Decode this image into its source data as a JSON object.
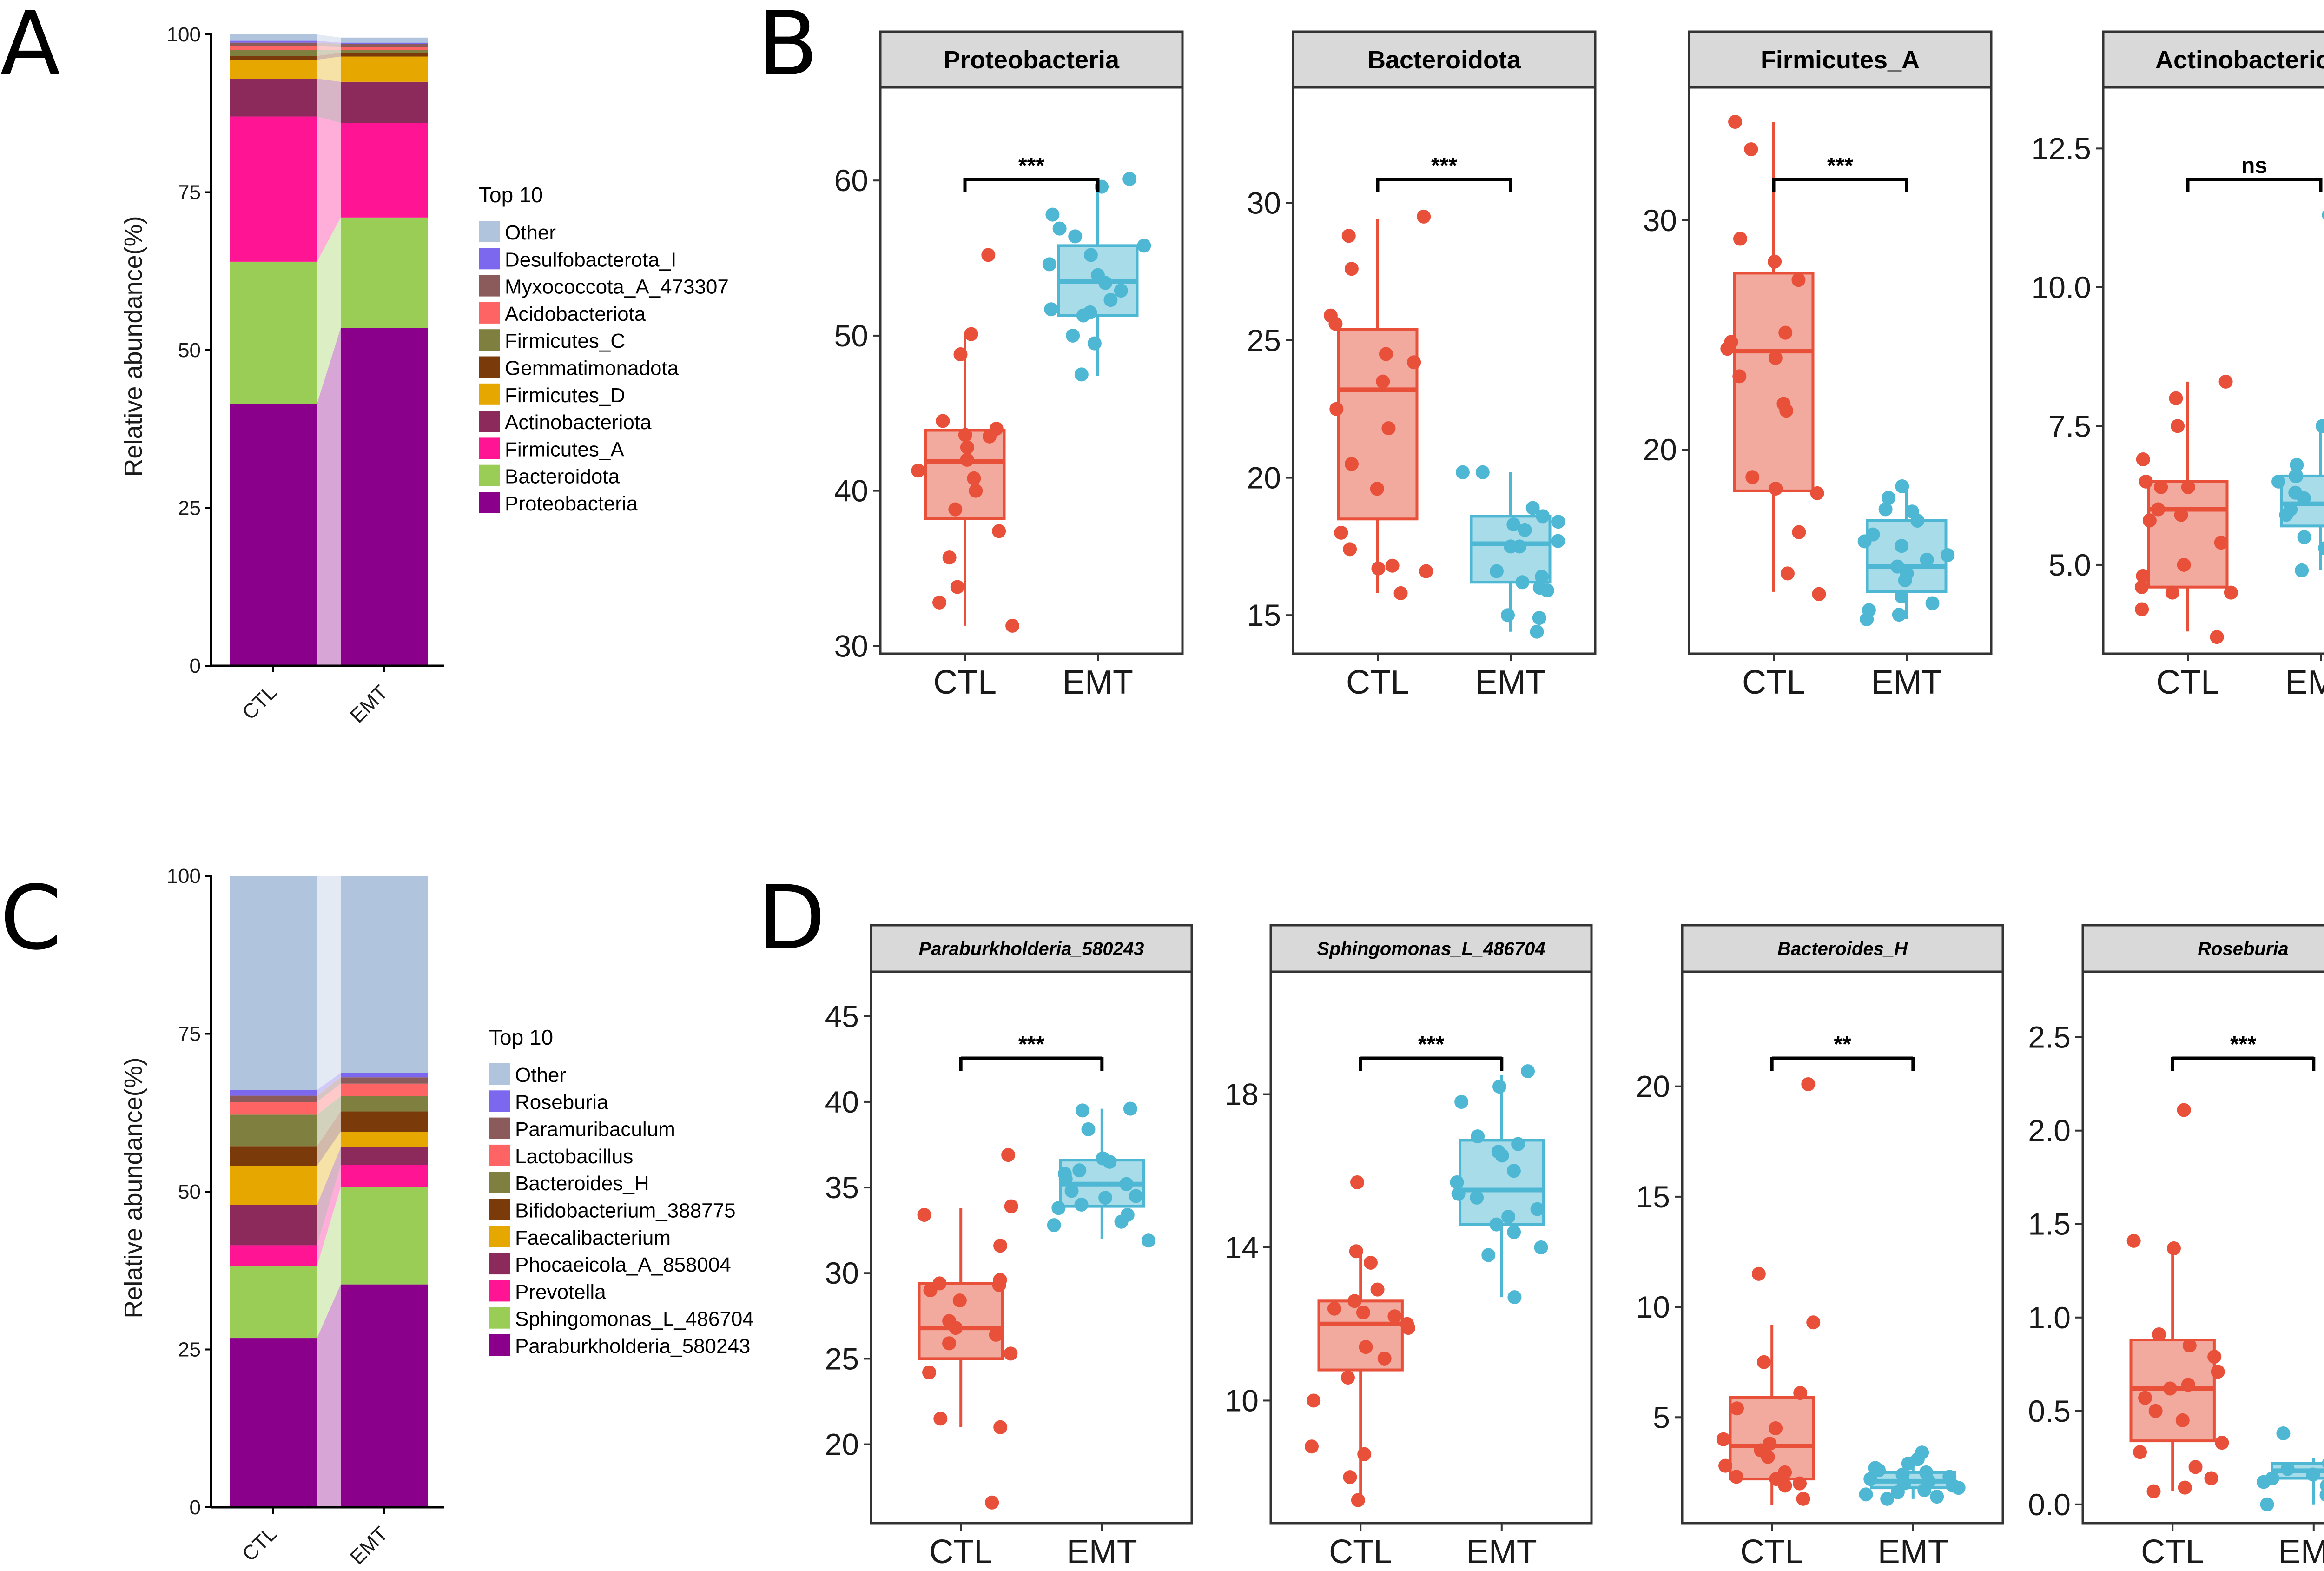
{
  "colors": {
    "ctl": "#E8503A",
    "emt": "#4EB8D4",
    "ctl_fill": "#F2A99E",
    "emt_fill": "#A8DCE8"
  },
  "panels": {
    "A": {
      "letter": "A",
      "legend_title": "Top 10",
      "ylabel": "Relative abundance(%)",
      "yticks": [
        "0",
        "25",
        "50",
        "75",
        "100"
      ]
    },
    "B": {
      "letter": "B"
    },
    "C": {
      "letter": "C",
      "legend_title": "Top 10",
      "ylabel": "Relative abundance(%)",
      "yticks": [
        "0",
        "25",
        "50",
        "75",
        "100"
      ]
    },
    "D": {
      "letter": "D"
    }
  },
  "chart_data": [
    {
      "id": "A",
      "type": "bar",
      "stacked": true,
      "title": "",
      "ylabel": "Relative abundance(%)",
      "ylim": [
        0,
        100
      ],
      "categories": [
        "CTL",
        "EMT"
      ],
      "series": [
        {
          "name": "Proteobacteria",
          "color": "#8B008B",
          "values": [
            41.5,
            53.5
          ]
        },
        {
          "name": "Bacteroidota",
          "color": "#9ACD56",
          "values": [
            22.5,
            17.5
          ]
        },
        {
          "name": "Firmicutes_A",
          "color": "#FF1493",
          "values": [
            23.0,
            15.0
          ]
        },
        {
          "name": "Actinobacteriota",
          "color": "#8B2A5B",
          "values": [
            6.0,
            6.5
          ]
        },
        {
          "name": "Firmicutes_D",
          "color": "#E6A800",
          "values": [
            3.0,
            4.0
          ]
        },
        {
          "name": "Gemmatimonadota",
          "color": "#7A3A0A",
          "values": [
            0.6,
            0.6
          ]
        },
        {
          "name": "Firmicutes_C",
          "color": "#7F7F40",
          "values": [
            0.9,
            0.4
          ]
        },
        {
          "name": "Acidobacteriota",
          "color": "#FF6464",
          "values": [
            0.6,
            0.5
          ]
        },
        {
          "name": "Myxococcota_A_473307",
          "color": "#8B5A5A",
          "values": [
            0.6,
            0.5
          ]
        },
        {
          "name": "Desulfobacterota_I",
          "color": "#7B68EE",
          "values": [
            0.3,
            0.2
          ]
        },
        {
          "name": "Other",
          "color": "#B0C4DE",
          "values": [
            1.0,
            0.8
          ]
        }
      ]
    },
    {
      "id": "B",
      "type": "boxplot",
      "groups": [
        "CTL",
        "EMT"
      ],
      "facets": [
        {
          "title": "Proteobacteria",
          "italic": false,
          "significance": "***",
          "ylim": [
            29.5,
            66
          ],
          "yticks": [
            30,
            40,
            50,
            60
          ],
          "ytick_labels": [
            "30",
            "40",
            "50",
            "60"
          ],
          "CTL": {
            "q1": 38.2,
            "median": 41.9,
            "q3": 43.9,
            "whisker_low": 31.3,
            "whisker_high": 50.0,
            "points": [
              55.2,
              50.1,
              48.8,
              44.5,
              44.0,
              43.5,
              43.6,
              42.8,
              42.0,
              41.3,
              40.8,
              40.0,
              38.8,
              37.4,
              35.7,
              33.8,
              32.8,
              31.3
            ]
          },
          "EMT": {
            "q1": 51.3,
            "median": 53.5,
            "q3": 55.8,
            "whisker_low": 47.4,
            "whisker_high": 60.0,
            "points": [
              60.1,
              59.6,
              57.8,
              56.9,
              56.4,
              55.8,
              55.2,
              54.6,
              53.9,
              53.4,
              52.9,
              52.3,
              51.7,
              51.5,
              51.3,
              50.0,
              49.5,
              47.5
            ]
          }
        },
        {
          "title": "Bacteroidota",
          "italic": false,
          "significance": "***",
          "ylim": [
            13.6,
            34.2
          ],
          "yticks": [
            15,
            20,
            25,
            30
          ],
          "ytick_labels": [
            "15",
            "20",
            "25",
            "30"
          ],
          "CTL": {
            "q1": 18.5,
            "median": 23.2,
            "q3": 25.4,
            "whisker_low": 15.8,
            "whisker_high": 29.4,
            "points": [
              29.5,
              28.8,
              27.6,
              25.9,
              25.6,
              24.5,
              24.2,
              23.5,
              22.5,
              21.8,
              20.5,
              19.6,
              18.0,
              17.4,
              16.8,
              16.7,
              16.6,
              15.8
            ]
          },
          "EMT": {
            "q1": 16.2,
            "median": 17.6,
            "q3": 18.6,
            "whisker_low": 14.4,
            "whisker_high": 20.2,
            "points": [
              20.2,
              20.2,
              18.9,
              18.6,
              18.4,
              18.3,
              18.1,
              17.7,
              17.5,
              17.5,
              16.6,
              16.4,
              16.2,
              16.0,
              15.9,
              15.0,
              14.9,
              14.4
            ]
          }
        },
        {
          "title": "Firmicutes_A",
          "italic": false,
          "significance": "***",
          "ylim": [
            11.1,
            35.8
          ],
          "yticks": [
            20,
            30
          ],
          "ytick_labels": [
            "20",
            "30"
          ],
          "CTL": {
            "q1": 18.2,
            "median": 24.3,
            "q3": 27.7,
            "whisker_low": 13.8,
            "whisker_high": 34.3,
            "points": [
              34.3,
              33.1,
              29.2,
              28.2,
              27.4,
              25.1,
              24.7,
              24.4,
              24.0,
              23.2,
              22.0,
              21.7,
              18.8,
              18.3,
              18.1,
              16.4,
              14.6,
              13.7
            ]
          },
          "EMT": {
            "q1": 13.8,
            "median": 14.9,
            "q3": 16.9,
            "whisker_low": 12.6,
            "whisker_high": 18.4,
            "points": [
              18.4,
              17.9,
              17.4,
              17.3,
              16.9,
              16.3,
              16.0,
              15.8,
              15.4,
              15.2,
              14.9,
              14.6,
              14.3,
              13.6,
              13.3,
              13.0,
              12.8,
              12.6
            ]
          }
        },
        {
          "title": "Actinobacteriota",
          "italic": false,
          "significance": "ns",
          "ylim": [
            3.4,
            13.6
          ],
          "yticks": [
            5.0,
            7.5,
            10.0,
            12.5
          ],
          "ytick_labels": [
            "5.0",
            "7.5",
            "10.0",
            "12.5"
          ],
          "CTL": {
            "q1": 4.6,
            "median": 6.0,
            "q3": 6.5,
            "whisker_low": 3.8,
            "whisker_high": 8.3,
            "points": [
              8.3,
              8.0,
              7.5,
              6.9,
              6.5,
              6.4,
              6.4,
              6.0,
              5.9,
              5.8,
              5.4,
              5.0,
              4.8,
              4.6,
              4.5,
              4.5,
              4.2,
              3.7
            ]
          },
          "EMT": {
            "q1": 5.7,
            "median": 6.1,
            "q3": 6.6,
            "whisker_low": 4.9,
            "whisker_high": 7.5,
            "points": [
              11.3,
              7.5,
              6.8,
              6.6,
              6.6,
              6.5,
              6.3,
              6.2,
              6.1,
              6.0,
              6.0,
              5.9,
              5.8,
              5.7,
              5.5,
              5.3,
              5.1,
              4.9
            ]
          }
        }
      ]
    },
    {
      "id": "C",
      "type": "bar",
      "stacked": true,
      "title": "",
      "ylabel": "Relative abundance(%)",
      "ylim": [
        0,
        100
      ],
      "categories": [
        "CTL",
        "EMT"
      ],
      "series": [
        {
          "name": "Paraburkholderia_580243",
          "color": "#8B008B",
          "values": [
            26.8,
            35.3
          ]
        },
        {
          "name": "Sphingomonas_L_486704",
          "color": "#9ACD56",
          "values": [
            11.4,
            15.4
          ]
        },
        {
          "name": "Prevotella",
          "color": "#FF1493",
          "values": [
            3.3,
            3.5
          ]
        },
        {
          "name": "Phocaeicola_A_858004",
          "color": "#8B2A5B",
          "values": [
            6.4,
            2.8
          ]
        },
        {
          "name": "Faecalibacterium",
          "color": "#E6A800",
          "values": [
            6.2,
            2.5
          ]
        },
        {
          "name": "Bifidobacterium_388775",
          "color": "#7A3A0A",
          "values": [
            3.1,
            3.2
          ]
        },
        {
          "name": "Bacteroides_H",
          "color": "#7F7F40",
          "values": [
            5.0,
            2.4
          ]
        },
        {
          "name": "Lactobacillus",
          "color": "#FF6464",
          "values": [
            2.0,
            2.0
          ]
        },
        {
          "name": "Paramuribaculum",
          "color": "#8B5A5A",
          "values": [
            1.0,
            1.0
          ]
        },
        {
          "name": "Roseburia",
          "color": "#7B68EE",
          "values": [
            0.9,
            0.7
          ]
        },
        {
          "name": "Other",
          "color": "#B0C4DE",
          "values": [
            33.9,
            31.2
          ]
        }
      ]
    },
    {
      "id": "D",
      "type": "boxplot",
      "groups": [
        "CTL",
        "EMT"
      ],
      "facets": [
        {
          "title": "Paraburkholderia_580243",
          "italic": true,
          "significance": "***",
          "ylim": [
            15.4,
            47.6
          ],
          "yticks": [
            20,
            25,
            30,
            35,
            40,
            45
          ],
          "ytick_labels": [
            "20",
            "25",
            "30",
            "35",
            "40",
            "45"
          ],
          "CTL": {
            "q1": 25.0,
            "median": 26.8,
            "q3": 29.4,
            "whisker_low": 21.0,
            "whisker_high": 33.8,
            "points": [
              36.9,
              33.9,
              33.4,
              31.6,
              29.6,
              29.4,
              29.3,
              29.0,
              28.4,
              27.2,
              26.8,
              26.4,
              25.9,
              25.3,
              24.2,
              21.5,
              21.0,
              16.6
            ]
          },
          "EMT": {
            "q1": 33.9,
            "median": 35.2,
            "q3": 36.6,
            "whisker_low": 32.0,
            "whisker_high": 39.6,
            "points": [
              39.6,
              39.5,
              38.4,
              36.7,
              36.5,
              36.0,
              35.8,
              35.5,
              35.2,
              34.8,
              34.5,
              34.4,
              34.0,
              33.8,
              33.4,
              33.0,
              32.8,
              31.9
            ]
          }
        },
        {
          "title": "Sphingomonas_L_486704",
          "italic": true,
          "significance": "***",
          "ylim": [
            6.8,
            21.2
          ],
          "yticks": [
            10,
            14,
            18
          ],
          "ytick_labels": [
            "10",
            "14",
            "18"
          ],
          "CTL": {
            "q1": 10.8,
            "median": 12.0,
            "q3": 12.6,
            "whisker_low": 7.5,
            "whisker_high": 13.9,
            "points": [
              15.7,
              13.9,
              13.6,
              12.9,
              12.6,
              12.4,
              12.3,
              12.2,
              12.0,
              11.9,
              11.4,
              11.1,
              10.6,
              10.0,
              8.8,
              8.6,
              8.0,
              7.4
            ]
          },
          "EMT": {
            "q1": 14.6,
            "median": 15.5,
            "q3": 16.8,
            "whisker_low": 12.7,
            "whisker_high": 18.5,
            "points": [
              18.6,
              18.2,
              17.8,
              16.9,
              16.7,
              16.5,
              16.4,
              16.0,
              15.7,
              15.4,
              15.3,
              15.0,
              14.8,
              14.6,
              14.4,
              14.0,
              13.8,
              12.7
            ]
          }
        },
        {
          "title": "Bacteroides_H",
          "italic": true,
          "significance": "**",
          "ylim": [
            0.2,
            25.2
          ],
          "yticks": [
            5,
            10,
            15,
            20
          ],
          "ytick_labels": [
            "5",
            "10",
            "15",
            "20"
          ],
          "CTL": {
            "q1": 2.2,
            "median": 3.7,
            "q3": 5.9,
            "whisker_low": 1.0,
            "whisker_high": 9.2,
            "points": [
              20.1,
              11.5,
              9.3,
              7.5,
              6.1,
              5.4,
              4.5,
              4.0,
              3.8,
              3.5,
              3.2,
              2.8,
              2.5,
              2.3,
              2.2,
              2.0,
              1.9,
              1.3
            ]
          },
          "EMT": {
            "q1": 1.8,
            "median": 2.1,
            "q3": 2.5,
            "whisker_low": 1.3,
            "whisker_high": 3.2,
            "points": [
              3.4,
              3.1,
              2.9,
              2.7,
              2.6,
              2.5,
              2.4,
              2.3,
              2.2,
              2.1,
              2.0,
              1.9,
              1.8,
              1.7,
              1.6,
              1.5,
              1.4,
              1.3
            ]
          }
        },
        {
          "title": "Roseburia",
          "italic": true,
          "significance": "***",
          "ylim": [
            -0.1,
            2.85
          ],
          "yticks": [
            0.0,
            0.5,
            1.0,
            1.5,
            2.0,
            2.5
          ],
          "ytick_labels": [
            "0.0",
            "0.5",
            "1.0",
            "1.5",
            "2.0",
            "2.5"
          ],
          "CTL": {
            "q1": 0.34,
            "median": 0.62,
            "q3": 0.88,
            "whisker_low": 0.07,
            "whisker_high": 1.35,
            "points": [
              2.11,
              1.41,
              1.37,
              0.91,
              0.85,
              0.79,
              0.71,
              0.64,
              0.62,
              0.57,
              0.5,
              0.45,
              0.33,
              0.28,
              0.2,
              0.14,
              0.09,
              0.07
            ]
          },
          "EMT": {
            "q1": 0.14,
            "median": 0.18,
            "q3": 0.22,
            "whisker_low": 0.0,
            "whisker_high": 0.25,
            "points": [
              1.01,
              0.56,
              0.38,
              0.35,
              0.22,
              0.21,
              0.2,
              0.19,
              0.18,
              0.17,
              0.16,
              0.14,
              0.12,
              0.1,
              0.05,
              0.02,
              0.01,
              0.0
            ]
          }
        }
      ]
    }
  ]
}
